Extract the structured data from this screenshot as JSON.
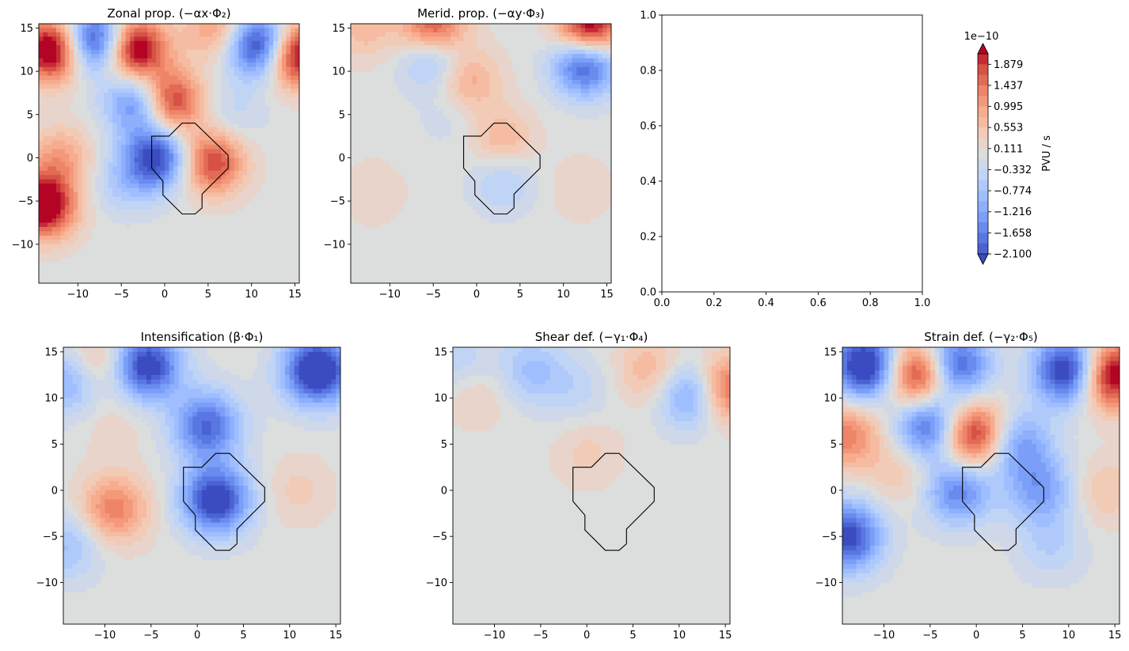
{
  "colors": {
    "neutral": "#dcdddd",
    "colormap": [
      "#3b4cc0",
      "#5977e3",
      "#7b9ff9",
      "#9ebeff",
      "#c0d4f5",
      "#dddcdc",
      "#f2cbb7",
      "#f7ac8e",
      "#ee8468",
      "#d65244",
      "#b40426"
    ]
  },
  "chart_data": [
    {
      "type": "heatmap",
      "title": "Zonal prop. (−αx·Φ₂)",
      "xlim": [
        -14.5,
        15.5
      ],
      "ylim": [
        -14.5,
        15.5
      ],
      "xticks": [
        -10,
        -5,
        0,
        5,
        10,
        15
      ],
      "xtick_labels": [
        "−10",
        "−5",
        "0",
        "5",
        "10",
        "15"
      ],
      "yticks": [
        -10,
        -5,
        0,
        5,
        10,
        15
      ],
      "ytick_labels": [
        "−10",
        "−5",
        "0",
        "5",
        "10",
        "15"
      ],
      "contour_polygon": [
        [
          -1.5,
          2.5
        ],
        [
          0.5,
          2.5
        ],
        [
          2,
          4
        ],
        [
          3.5,
          4
        ],
        [
          7.3,
          0.3
        ],
        [
          7.3,
          -1.2
        ],
        [
          4.3,
          -4.2
        ],
        [
          4.3,
          -5.8
        ],
        [
          3.5,
          -6.5
        ],
        [
          2,
          -6.5
        ],
        [
          -0.2,
          -4.3
        ],
        [
          -0.2,
          -2.7
        ],
        [
          -1.5,
          -1.2
        ]
      ],
      "blobs": [
        {
          "x": -13,
          "y": 12.5,
          "v": 1.0
        },
        {
          "x": -8,
          "y": 13.5,
          "v": -0.95
        },
        {
          "x": -3.5,
          "y": 12.5,
          "v": 1.0
        },
        {
          "x": 11,
          "y": 13,
          "v": -1.0
        },
        {
          "x": 15,
          "y": 12,
          "v": 1.0
        },
        {
          "x": 6,
          "y": 15,
          "v": 0.4
        },
        {
          "x": -3,
          "y": 6.5,
          "v": -0.7
        },
        {
          "x": 0.5,
          "y": 6.5,
          "v": 0.85
        },
        {
          "x": -1,
          "y": 0,
          "v": -0.85
        },
        {
          "x": 5.5,
          "y": -0.5,
          "v": 0.7
        },
        {
          "x": -14,
          "y": -5.5,
          "v": 1.0
        },
        {
          "x": -12,
          "y": 0,
          "v": 0.35
        },
        {
          "x": -5,
          "y": -3,
          "v": -0.2
        },
        {
          "x": 8,
          "y": 5,
          "v": -0.15
        }
      ]
    },
    {
      "type": "heatmap",
      "title": "Merid. prop. (−αy·Φ₃)",
      "xlim": [
        -14.5,
        15.5
      ],
      "ylim": [
        -14.5,
        15.5
      ],
      "xticks": [
        -10,
        -5,
        0,
        5,
        10,
        15
      ],
      "xtick_labels": [
        "−10",
        "−5",
        "0",
        "5",
        "10",
        "15"
      ],
      "yticks": [
        -10,
        -5,
        0,
        5,
        10,
        15
      ],
      "ytick_labels": [
        "−10",
        "−5",
        "0",
        "5",
        "10",
        "15"
      ],
      "contour_polygon": [
        [
          -1.5,
          2.5
        ],
        [
          0.5,
          2.5
        ],
        [
          2,
          4
        ],
        [
          3.5,
          4
        ],
        [
          7.3,
          0.3
        ],
        [
          7.3,
          -1.2
        ],
        [
          4.3,
          -4.2
        ],
        [
          4.3,
          -5.8
        ],
        [
          3.5,
          -6.5
        ],
        [
          2,
          -6.5
        ],
        [
          -0.2,
          -4.3
        ],
        [
          -0.2,
          -2.7
        ],
        [
          -1.5,
          -1.2
        ]
      ],
      "blobs": [
        {
          "x": 13,
          "y": 15,
          "v": 1.0
        },
        {
          "x": 12.5,
          "y": 11,
          "v": -0.85
        },
        {
          "x": -5,
          "y": 12,
          "v": -0.5
        },
        {
          "x": -5,
          "y": 15,
          "v": 0.8
        },
        {
          "x": -13,
          "y": 15,
          "v": 0.25
        },
        {
          "x": -1,
          "y": 9,
          "v": 0.35
        },
        {
          "x": 3,
          "y": 2,
          "v": 0.3
        },
        {
          "x": 3,
          "y": -2.5,
          "v": -0.25
        },
        {
          "x": -12,
          "y": -4,
          "v": 0.12
        },
        {
          "x": -3,
          "y": 5,
          "v": -0.1
        },
        {
          "x": 12,
          "y": -3.5,
          "v": 0.12
        }
      ]
    },
    {
      "type": "empty",
      "xlim": [
        0,
        1
      ],
      "ylim": [
        0,
        1
      ],
      "xticks": [
        0,
        0.2,
        0.4,
        0.6,
        0.8,
        1.0
      ],
      "xtick_labels": [
        "0.0",
        "0.2",
        "0.4",
        "0.6",
        "0.8",
        "1.0"
      ],
      "yticks": [
        0,
        0.2,
        0.4,
        0.6,
        0.8,
        1.0
      ],
      "ytick_labels": [
        "0.0",
        "0.2",
        "0.4",
        "0.6",
        "0.8",
        "1.0"
      ]
    },
    {
      "type": "heatmap",
      "title": "Intensification (β·Φ₁)",
      "xlim": [
        -14.5,
        15.5
      ],
      "ylim": [
        -14.5,
        15.5
      ],
      "xticks": [
        -10,
        -5,
        0,
        5,
        10,
        15
      ],
      "xtick_labels": [
        "−10",
        "−5",
        "0",
        "5",
        "10",
        "15"
      ],
      "yticks": [
        -10,
        -5,
        0,
        5,
        10,
        15
      ],
      "ytick_labels": [
        "−10",
        "−5",
        "0",
        "5",
        "10",
        "15"
      ],
      "contour_polygon": [
        [
          -1.5,
          2.5
        ],
        [
          0.5,
          2.5
        ],
        [
          2,
          4
        ],
        [
          3.5,
          4
        ],
        [
          7.3,
          0.3
        ],
        [
          7.3,
          -1.2
        ],
        [
          4.3,
          -4.2
        ],
        [
          4.3,
          -5.8
        ],
        [
          3.5,
          -6.5
        ],
        [
          2,
          -6.5
        ],
        [
          -0.2,
          -4.3
        ],
        [
          -0.2,
          -2.7
        ],
        [
          -1.5,
          -1.2
        ]
      ],
      "blobs": [
        {
          "x": 13,
          "y": 13,
          "v": -1.0
        },
        {
          "x": -5.5,
          "y": 13.5,
          "v": -0.9
        },
        {
          "x": -13.5,
          "y": 12,
          "v": -0.5
        },
        {
          "x": 1,
          "y": 7,
          "v": -0.7
        },
        {
          "x": 2,
          "y": -1,
          "v": -0.9
        },
        {
          "x": -9,
          "y": -2,
          "v": 0.5
        },
        {
          "x": -11,
          "y": 13.5,
          "v": 0.4
        },
        {
          "x": -14,
          "y": -6,
          "v": -0.3
        },
        {
          "x": 11,
          "y": 0,
          "v": 0.15
        },
        {
          "x": -9,
          "y": 7,
          "v": 0.1
        }
      ]
    },
    {
      "type": "heatmap",
      "title": "Shear def. (−γ₁·Φ₄)",
      "xlim": [
        -14.5,
        15.5
      ],
      "ylim": [
        -14.5,
        15.5
      ],
      "xticks": [
        -10,
        -5,
        0,
        5,
        10,
        15
      ],
      "xtick_labels": [
        "−10",
        "−5",
        "0",
        "5",
        "10",
        "15"
      ],
      "yticks": [
        -10,
        -5,
        0,
        5,
        10,
        15
      ],
      "ytick_labels": [
        "−10",
        "−5",
        "0",
        "5",
        "10",
        "15"
      ],
      "contour_polygon": [
        [
          -1.5,
          2.5
        ],
        [
          0.5,
          2.5
        ],
        [
          2,
          4
        ],
        [
          3.5,
          4
        ],
        [
          7.3,
          0.3
        ],
        [
          7.3,
          -1.2
        ],
        [
          4.3,
          -4.2
        ],
        [
          4.3,
          -5.8
        ],
        [
          3.5,
          -6.5
        ],
        [
          2,
          -6.5
        ],
        [
          -0.2,
          -4.3
        ],
        [
          -0.2,
          -2.7
        ],
        [
          -1.5,
          -1.2
        ]
      ],
      "blobs": [
        {
          "x": 11.5,
          "y": 10.5,
          "v": -0.6
        },
        {
          "x": 15,
          "y": 11,
          "v": 0.7
        },
        {
          "x": 7,
          "y": 13,
          "v": 0.3
        },
        {
          "x": -6,
          "y": 13,
          "v": -0.3
        },
        {
          "x": -12,
          "y": 10.5,
          "v": 0.15
        },
        {
          "x": -1,
          "y": 11,
          "v": -0.15
        },
        {
          "x": 0,
          "y": 4,
          "v": 0.15
        },
        {
          "x": -14,
          "y": 14,
          "v": -0.2
        }
      ]
    },
    {
      "type": "heatmap",
      "title": "Strain def. (−γ₂·Φ₅)",
      "xlim": [
        -14.5,
        15.5
      ],
      "ylim": [
        -14.5,
        15.5
      ],
      "xticks": [
        -10,
        -5,
        0,
        5,
        10,
        15
      ],
      "xtick_labels": [
        "−10",
        "−5",
        "0",
        "5",
        "10",
        "15"
      ],
      "yticks": [
        -10,
        -5,
        0,
        5,
        10,
        15
      ],
      "ytick_labels": [
        "−10",
        "−5",
        "0",
        "5",
        "10",
        "15"
      ],
      "contour_polygon": [
        [
          -1.5,
          2.5
        ],
        [
          0.5,
          2.5
        ],
        [
          2,
          4
        ],
        [
          3.5,
          4
        ],
        [
          7.3,
          0.3
        ],
        [
          7.3,
          -1.2
        ],
        [
          4.3,
          -4.2
        ],
        [
          4.3,
          -5.8
        ],
        [
          3.5,
          -6.5
        ],
        [
          2,
          -6.5
        ],
        [
          -0.2,
          -4.3
        ],
        [
          -0.2,
          -2.7
        ],
        [
          -1.5,
          -1.2
        ]
      ],
      "blobs": [
        {
          "x": -12,
          "y": 13.5,
          "v": -1.0
        },
        {
          "x": -6,
          "y": 12.5,
          "v": 1.0
        },
        {
          "x": -2.5,
          "y": 13.5,
          "v": -0.9
        },
        {
          "x": 10,
          "y": 13,
          "v": -1.0
        },
        {
          "x": 14.5,
          "y": 12.5,
          "v": 1.0
        },
        {
          "x": -5,
          "y": 7,
          "v": -0.8
        },
        {
          "x": -0.5,
          "y": 6,
          "v": 0.9
        },
        {
          "x": 4.5,
          "y": 5,
          "v": -0.5
        },
        {
          "x": -2,
          "y": 0,
          "v": -0.6
        },
        {
          "x": 7,
          "y": 0,
          "v": -0.45
        },
        {
          "x": -14,
          "y": -5,
          "v": -0.85
        },
        {
          "x": -14,
          "y": 6,
          "v": 0.5
        },
        {
          "x": -8,
          "y": 2,
          "v": 0.2
        },
        {
          "x": 14,
          "y": 0,
          "v": 0.2
        },
        {
          "x": 8,
          "y": -6,
          "v": -0.2
        }
      ]
    }
  ],
  "colorbar": {
    "label": "PVU / s",
    "exponent": "1e−10",
    "range": [
      -2.1,
      2.1
    ],
    "tick_values": [
      1.879,
      1.437,
      0.995,
      0.553,
      0.111,
      -0.332,
      -0.774,
      -1.216,
      -1.658,
      -2.1
    ],
    "tick_labels": [
      "1.879",
      "1.437",
      "0.995",
      "0.553",
      "0.111",
      "−0.332",
      "−0.774",
      "−1.216",
      "−1.658",
      "−2.100"
    ],
    "extend": "both"
  }
}
